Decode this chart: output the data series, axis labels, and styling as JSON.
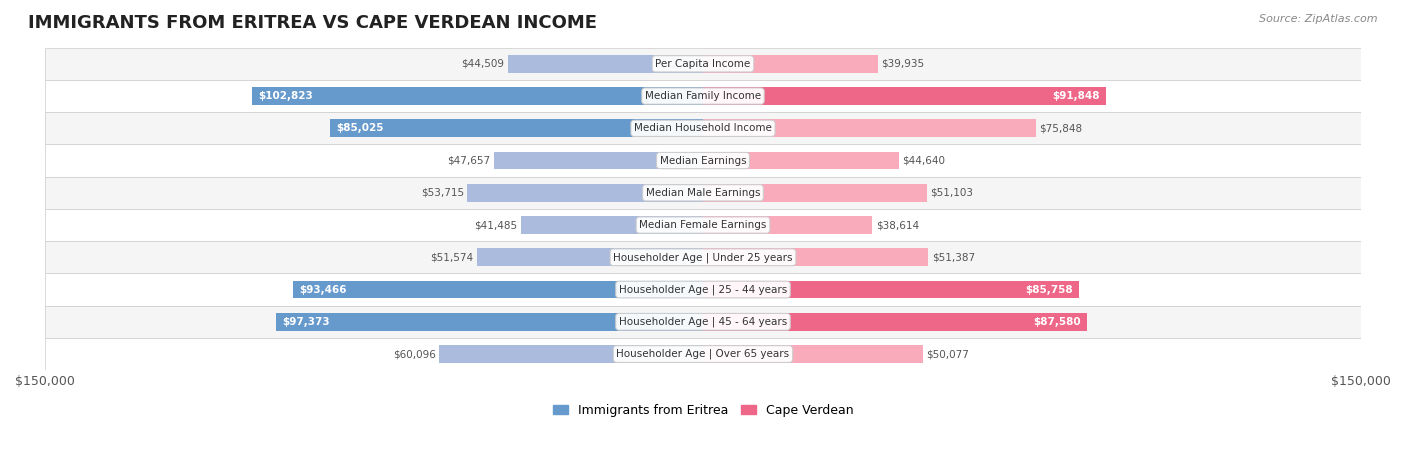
{
  "title": "IMMIGRANTS FROM ERITREA VS CAPE VERDEAN INCOME",
  "source": "Source: ZipAtlas.com",
  "categories": [
    "Per Capita Income",
    "Median Family Income",
    "Median Household Income",
    "Median Earnings",
    "Median Male Earnings",
    "Median Female Earnings",
    "Householder Age | Under 25 years",
    "Householder Age | 25 - 44 years",
    "Householder Age | 45 - 64 years",
    "Householder Age | Over 65 years"
  ],
  "eritrea_values": [
    44509,
    102823,
    85025,
    47657,
    53715,
    41485,
    51574,
    93466,
    97373,
    60096
  ],
  "capeverde_values": [
    39935,
    91848,
    75848,
    44640,
    51103,
    38614,
    51387,
    85758,
    87580,
    50077
  ],
  "eritrea_color_dark": "#6699CC",
  "eritrea_color_light": "#AABBDD",
  "capeverde_color_dark": "#EE6688",
  "capeverde_color_light": "#F9AABB",
  "max_value": 150000,
  "bg_color": "#ffffff",
  "row_bg_even": "#f5f5f5",
  "row_bg_odd": "#ffffff",
  "bar_height": 0.55,
  "legend_eritrea": "Immigrants from Eritrea",
  "legend_capeverde": "Cape Verdean"
}
